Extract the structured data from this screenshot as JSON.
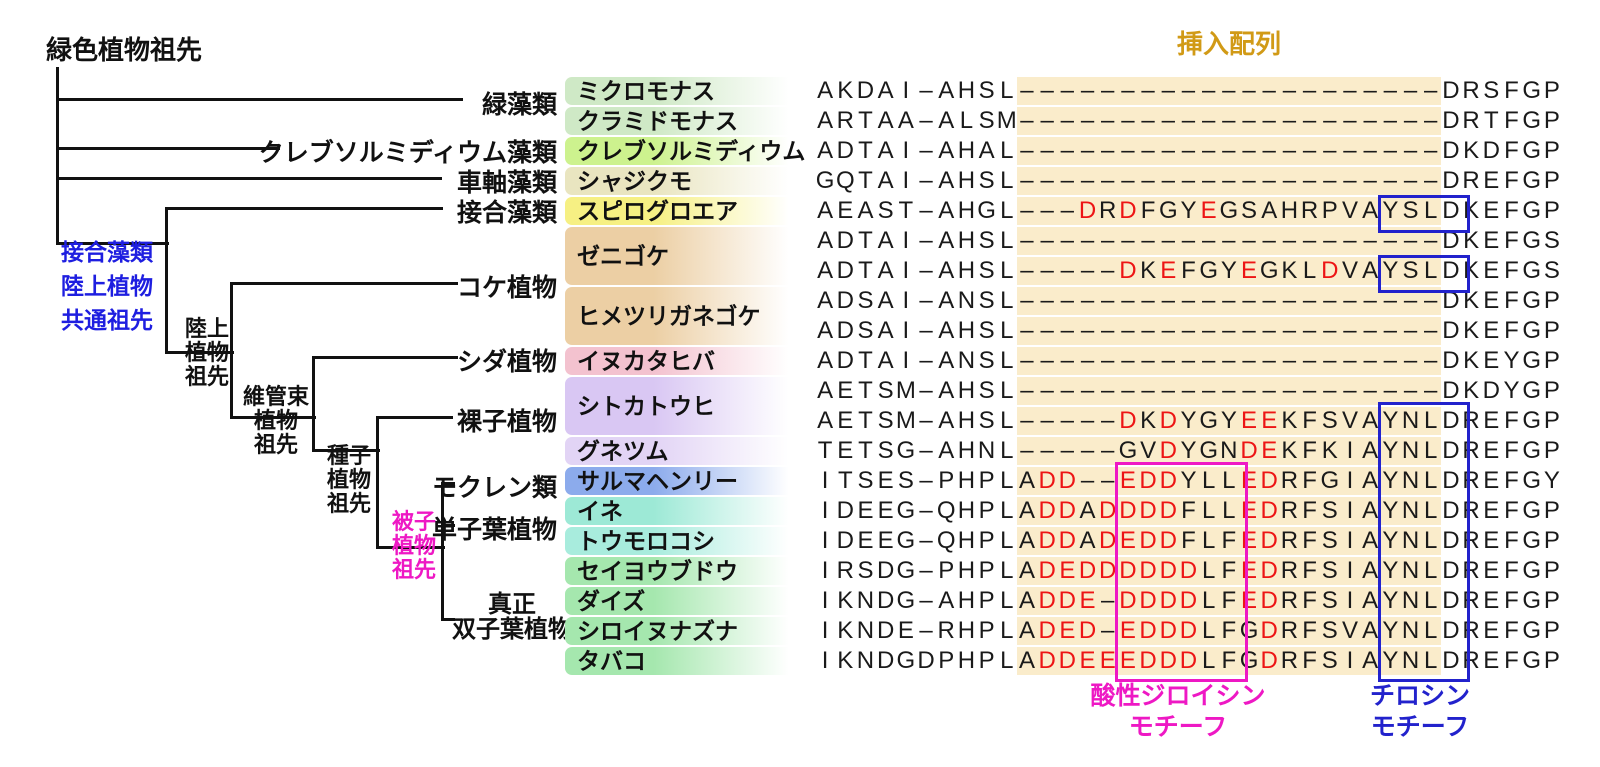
{
  "labels": {
    "insertion": "挿入配列",
    "acidic_line1": "酸性ジロイシン",
    "acidic_line2": "モチーフ",
    "tyrosine_line1": "チロシン",
    "tyrosine_line2": "モチーフ"
  },
  "colors": {
    "red_residue": "#ed1515",
    "blue": "#2222cc",
    "magenta": "#ee18c4",
    "gold": "#d19a16",
    "insertion_bg": "#faeccb",
    "tree_line": "#111111"
  },
  "tree": {
    "root_label": "緑色植物祖先",
    "internal_nodes": [
      {
        "id": "zygnematophyte-land-plant-common-ancestor",
        "lines": [
          "接合藻類",
          "陸上植物",
          "共通祖先"
        ],
        "color": "#1e1ee0"
      },
      {
        "id": "land-plant-ancestor",
        "lines": [
          "陸上",
          "植物",
          "祖先"
        ],
        "color": "#111111"
      },
      {
        "id": "vascular-plant-ancestor",
        "lines": [
          "維管束",
          "植物",
          "祖先"
        ],
        "color": "#111111"
      },
      {
        "id": "seed-plant-ancestor",
        "lines": [
          "種子",
          "植物",
          "祖先"
        ],
        "color": "#111111"
      },
      {
        "id": "angiosperm-ancestor",
        "lines": [
          "被子",
          "植物",
          "祖先"
        ],
        "color": "#ee18c4"
      }
    ],
    "tips": [
      {
        "id": "green-algae",
        "label": "緑藻類"
      },
      {
        "id": "klebsormidiophyceae",
        "label": "クレブソルミディウム藻類"
      },
      {
        "id": "charophyceae",
        "label": "車軸藻類"
      },
      {
        "id": "zygnematophyceae",
        "label": "接合藻類"
      },
      {
        "id": "bryophytes",
        "label": "コケ植物"
      },
      {
        "id": "ferns",
        "label": "シダ植物"
      },
      {
        "id": "gymnosperms",
        "label": "裸子植物"
      },
      {
        "id": "magnoliids",
        "label": "モクレン類"
      },
      {
        "id": "monocots",
        "label": "単子葉植物"
      },
      {
        "id": "eudicots",
        "label_lines": [
          "真正",
          "双子葉植物"
        ]
      }
    ]
  },
  "species": [
    {
      "id": "micromonas",
      "name": "ミクロモナス",
      "row": 1,
      "span": 1,
      "color": "#cfe9c6"
    },
    {
      "id": "chlamydomonas",
      "name": "クラミドモナス",
      "row": 2,
      "span": 1,
      "color": "#cfe9c6"
    },
    {
      "id": "klebsormidium",
      "name": "クレブソルミディウム",
      "row": 3,
      "span": 1,
      "color": "#cdf28e"
    },
    {
      "id": "chara",
      "name": "シャジクモ",
      "row": 4,
      "span": 1,
      "color": "#e9e5c0"
    },
    {
      "id": "spirogloea",
      "name": "スピログロエア",
      "row": 5,
      "span": 1,
      "color": "#f6f083"
    },
    {
      "id": "marchantia",
      "name": "ゼニゴケ",
      "row": 6,
      "span": 2,
      "color": "#eccfa4"
    },
    {
      "id": "physcomitrium",
      "name": "ヒメツリガネゴケ",
      "row": 8,
      "span": 2,
      "color": "#eccfa4"
    },
    {
      "id": "selaginella",
      "name": "イヌカタヒバ",
      "row": 10,
      "span": 1,
      "color": "#f3c2cf"
    },
    {
      "id": "sitka-spruce",
      "name": "シトカトウヒ",
      "row": 11,
      "span": 2,
      "color": "#d9c7f3"
    },
    {
      "id": "gnetum",
      "name": "グネツム",
      "row": 13,
      "span": 1,
      "color": "#e2d4f5"
    },
    {
      "id": "saruma-henryi",
      "name": "サルマヘンリー",
      "row": 14,
      "span": 1,
      "color": "#8cabec"
    },
    {
      "id": "rice",
      "name": "イネ",
      "row": 15,
      "span": 1,
      "color": "#9de9d6"
    },
    {
      "id": "maize",
      "name": "トウモロコシ",
      "row": 16,
      "span": 1,
      "color": "#a8ecdd"
    },
    {
      "id": "grape",
      "name": "セイヨウブドウ",
      "row": 17,
      "span": 1,
      "color": "#a5e7ae"
    },
    {
      "id": "soybean",
      "name": "ダイズ",
      "row": 18,
      "span": 1,
      "color": "#a5e7ae"
    },
    {
      "id": "arabidopsis",
      "name": "シロイヌナズナ",
      "row": 19,
      "span": 1,
      "color": "#a5e7ae"
    },
    {
      "id": "tobacco",
      "name": "タバコ",
      "row": 20,
      "span": 1,
      "color": "#a5e7ae"
    }
  ],
  "alignment": {
    "columns": 37,
    "insertion_cols": [
      11,
      31
    ],
    "rows": [
      {
        "seq": "AKDAI-AHSL---------------------DRSFGP",
        "red": []
      },
      {
        "seq": "ARTAA-ALSM---------------------DRTFGP",
        "red": []
      },
      {
        "seq": "ADTAI-AHAL---------------------DKDFGP",
        "red": []
      },
      {
        "seq": "GQTAI-AHSL---------------------DREFGP",
        "red": []
      },
      {
        "seq": "AEAST-AHGL---DRDFGYEGSAHRPVAYSLDKEFGP",
        "red": [
          13,
          15,
          19
        ]
      },
      {
        "seq": "ADTAI-AHSL---------------------DKEFGS",
        "red": []
      },
      {
        "seq": "ADTAI-AHSL-----DKEFGYEGKLDVAYSLDKEFGS",
        "red": [
          15,
          17,
          21,
          25
        ]
      },
      {
        "seq": "ADSAI-ANSL---------------------DKEFGP",
        "red": []
      },
      {
        "seq": "ADSAI-AHSL---------------------DKEFGP",
        "red": []
      },
      {
        "seq": "ADTAI-ANSL---------------------DKEYGP",
        "red": []
      },
      {
        "seq": "AETSM-AHSL---------------------DKDYGP",
        "red": []
      },
      {
        "seq": "AETSM-AHSL-----DKDYGYEEKFSVAYNLDREFGP",
        "red": [
          15,
          17,
          21,
          22
        ]
      },
      {
        "seq": "TETSG-AHNL-----GVDYGNDEKFKIAYNLDREFGP",
        "red": [
          17,
          21,
          22
        ]
      },
      {
        "seq": "ITSES-PHPLADD--EDDYLLEDRFGIAYNLDREFGY",
        "red": [
          11,
          12,
          15,
          16,
          17,
          21,
          22
        ]
      },
      {
        "seq": "IDEEG-QHPLADDADDDDFLLEDRFSIAYNLDREFGP",
        "red": [
          11,
          12,
          14,
          15,
          16,
          17,
          21,
          22
        ]
      },
      {
        "seq": "IDEEG-QHPLADDADEDDFLFEDRFSIAYNLDREFGP",
        "red": [
          11,
          12,
          14,
          15,
          16,
          17,
          21,
          22
        ]
      },
      {
        "seq": "IRSDG-PHPLADEDDDDDDLFEDRFSIAYNLDREFGP",
        "red": [
          11,
          12,
          13,
          14,
          15,
          16,
          17,
          18,
          21,
          22
        ]
      },
      {
        "seq": "IKNDG-AHPLADDE-DDDDLFEDRFSIAYNLDREFGP",
        "red": [
          11,
          12,
          13,
          15,
          16,
          17,
          18,
          21,
          22
        ]
      },
      {
        "seq": "IKNDE-RHPLADED-EDDDLFGDRFSVAYNLDREFGP",
        "red": [
          11,
          12,
          13,
          15,
          16,
          17,
          18,
          22
        ]
      },
      {
        "seq": "IKNDGDPHPLADDEEEDDDLFGDRFSIAYNLDREFGP",
        "red": [
          11,
          12,
          13,
          14,
          15,
          16,
          17,
          18,
          22
        ]
      }
    ]
  },
  "motif_boxes": {
    "tyrosine_cols": [
      29,
      32
    ],
    "tyrosine_small_rows": [
      5,
      7
    ],
    "tyrosine_tall_rows": [
      12,
      20
    ],
    "acidic_cols": [
      16,
      21
    ],
    "acidic_rows": [
      14,
      20
    ]
  }
}
